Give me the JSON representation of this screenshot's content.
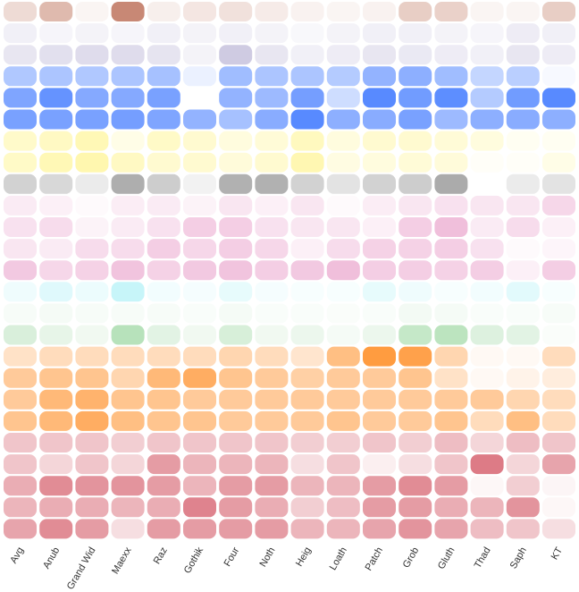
{
  "chart_data": {
    "type": "heatmap",
    "columns": [
      "Avg",
      "Anub",
      "Grand Wid",
      "Maexx",
      "Raz",
      "Gothik",
      "Four",
      "Noth",
      "Heig",
      "Loath",
      "Patch",
      "Grob",
      "Gluth",
      "Thad",
      "Saph",
      "KT"
    ],
    "row_groups": [
      {
        "color": "#b35a3f",
        "rows": [
          [
            0.22,
            0.42,
            0.06,
            0.72,
            0.1,
            0.15,
            0.18,
            0.12,
            0.08,
            0.06,
            0.08,
            0.3,
            0.28,
            0.06,
            0.06,
            0.3
          ]
        ]
      },
      {
        "color": "#8c82bb",
        "rows": [
          [
            0.12,
            0.08,
            0.1,
            0.08,
            0.12,
            0.1,
            0.12,
            0.1,
            0.06,
            0.1,
            0.12,
            0.12,
            0.1,
            0.08,
            0.15,
            0.12
          ],
          [
            0.2,
            0.25,
            0.28,
            0.28,
            0.22,
            0.1,
            0.42,
            0.2,
            0.12,
            0.15,
            0.2,
            0.18,
            0.15,
            0.12,
            0.2,
            0.15
          ]
        ]
      },
      {
        "color": "#3a75ff",
        "rows": [
          [
            0.4,
            0.42,
            0.4,
            0.42,
            0.45,
            0.1,
            0.48,
            0.42,
            0.42,
            0.38,
            0.55,
            0.58,
            0.48,
            0.3,
            0.35,
            0.04
          ],
          [
            0.65,
            0.78,
            0.62,
            0.62,
            0.68,
            0.0,
            0.55,
            0.5,
            0.7,
            0.25,
            0.85,
            0.72,
            0.82,
            0.38,
            0.72,
            0.85
          ],
          [
            0.68,
            0.68,
            0.68,
            0.7,
            0.65,
            0.55,
            0.45,
            0.6,
            0.85,
            0.58,
            0.6,
            0.68,
            0.5,
            0.58,
            0.6,
            0.58
          ]
        ]
      },
      {
        "color": "#fff27a",
        "rows": [
          [
            0.4,
            0.45,
            0.55,
            0.18,
            0.42,
            0.35,
            0.25,
            0.3,
            0.48,
            0.25,
            0.35,
            0.35,
            0.3,
            0.25,
            0.1,
            0.1
          ],
          [
            0.42,
            0.55,
            0.6,
            0.45,
            0.35,
            0.35,
            0.28,
            0.35,
            0.58,
            0.22,
            0.25,
            0.3,
            0.28,
            0.05,
            0.05,
            0.18
          ]
        ]
      },
      {
        "color": "#8f8f8f",
        "rows": [
          [
            0.4,
            0.35,
            0.18,
            0.72,
            0.45,
            0.12,
            0.7,
            0.7,
            0.4,
            0.25,
            0.4,
            0.45,
            0.75,
            0.0,
            0.18,
            0.25
          ]
        ]
      },
      {
        "color": "#e89cc8",
        "rows": [
          [
            0.2,
            0.15,
            0.05,
            0.18,
            0.2,
            0.12,
            0.25,
            0.15,
            0.25,
            0.05,
            0.18,
            0.25,
            0.3,
            0.25,
            0.25,
            0.4
          ],
          [
            0.3,
            0.35,
            0.12,
            0.2,
            0.3,
            0.5,
            0.5,
            0.3,
            0.25,
            0.25,
            0.15,
            0.5,
            0.65,
            0.2,
            0.35,
            0.15
          ],
          [
            0.25,
            0.2,
            0.35,
            0.35,
            0.5,
            0.4,
            0.5,
            0.4,
            0.15,
            0.35,
            0.45,
            0.45,
            0.5,
            0.3,
            0.05,
            0.1
          ],
          [
            0.55,
            0.4,
            0.45,
            0.6,
            0.45,
            0.55,
            0.6,
            0.5,
            0.55,
            0.65,
            0.5,
            0.5,
            0.45,
            0.5,
            0.15,
            0.5
          ]
        ]
      },
      {
        "color": "#5ee2ee",
        "rows": [
          [
            0.1,
            0.2,
            0.12,
            0.35,
            0.08,
            0.06,
            0.15,
            0.06,
            0.05,
            0.05,
            0.15,
            0.1,
            0.05,
            0.08,
            0.18,
            0.05
          ]
        ]
      },
      {
        "color": "#9fd8a4",
        "rows": [
          [
            0.08,
            0.1,
            0.08,
            0.08,
            0.08,
            0.06,
            0.1,
            0.06,
            0.06,
            0.05,
            0.06,
            0.12,
            0.1,
            0.06,
            0.06,
            0.08
          ],
          [
            0.4,
            0.25,
            0.15,
            0.75,
            0.3,
            0.15,
            0.42,
            0.15,
            0.2,
            0.1,
            0.2,
            0.6,
            0.7,
            0.35,
            0.3,
            0.05
          ]
        ]
      },
      {
        "color": "#ff8a1e",
        "rows": [
          [
            0.25,
            0.3,
            0.3,
            0.3,
            0.3,
            0.3,
            0.35,
            0.3,
            0.22,
            0.55,
            0.85,
            0.8,
            0.35,
            0.05,
            0.05,
            0.3
          ],
          [
            0.45,
            0.5,
            0.5,
            0.35,
            0.6,
            0.7,
            0.5,
            0.45,
            0.4,
            0.45,
            0.45,
            0.5,
            0.25,
            0.05,
            0.1,
            0.15
          ],
          [
            0.45,
            0.6,
            0.65,
            0.5,
            0.5,
            0.45,
            0.45,
            0.45,
            0.45,
            0.45,
            0.45,
            0.45,
            0.45,
            0.45,
            0.35,
            0.3
          ],
          [
            0.5,
            0.6,
            0.7,
            0.55,
            0.5,
            0.5,
            0.45,
            0.45,
            0.45,
            0.5,
            0.45,
            0.45,
            0.5,
            0.3,
            0.55,
            0.3
          ]
        ]
      },
      {
        "color": "#d45a68",
        "rows": [
          [
            0.35,
            0.35,
            0.35,
            0.3,
            0.35,
            0.35,
            0.35,
            0.35,
            0.3,
            0.3,
            0.35,
            0.3,
            0.4,
            0.25,
            0.4,
            0.35
          ],
          [
            0.35,
            0.25,
            0.35,
            0.25,
            0.6,
            0.45,
            0.45,
            0.45,
            0.2,
            0.35,
            0.1,
            0.2,
            0.35,
            0.8,
            0.25,
            0.55
          ],
          [
            0.5,
            0.7,
            0.65,
            0.65,
            0.6,
            0.45,
            0.6,
            0.6,
            0.45,
            0.45,
            0.6,
            0.7,
            0.6,
            0.05,
            0.3,
            0.06
          ],
          [
            0.45,
            0.5,
            0.5,
            0.45,
            0.5,
            0.75,
            0.6,
            0.5,
            0.3,
            0.4,
            0.6,
            0.6,
            0.5,
            0.45,
            0.65,
            0.05
          ],
          [
            0.55,
            0.7,
            0.6,
            0.2,
            0.6,
            0.6,
            0.6,
            0.6,
            0.45,
            0.45,
            0.55,
            0.65,
            0.55,
            0.4,
            0.35,
            0.2
          ]
        ]
      }
    ]
  }
}
